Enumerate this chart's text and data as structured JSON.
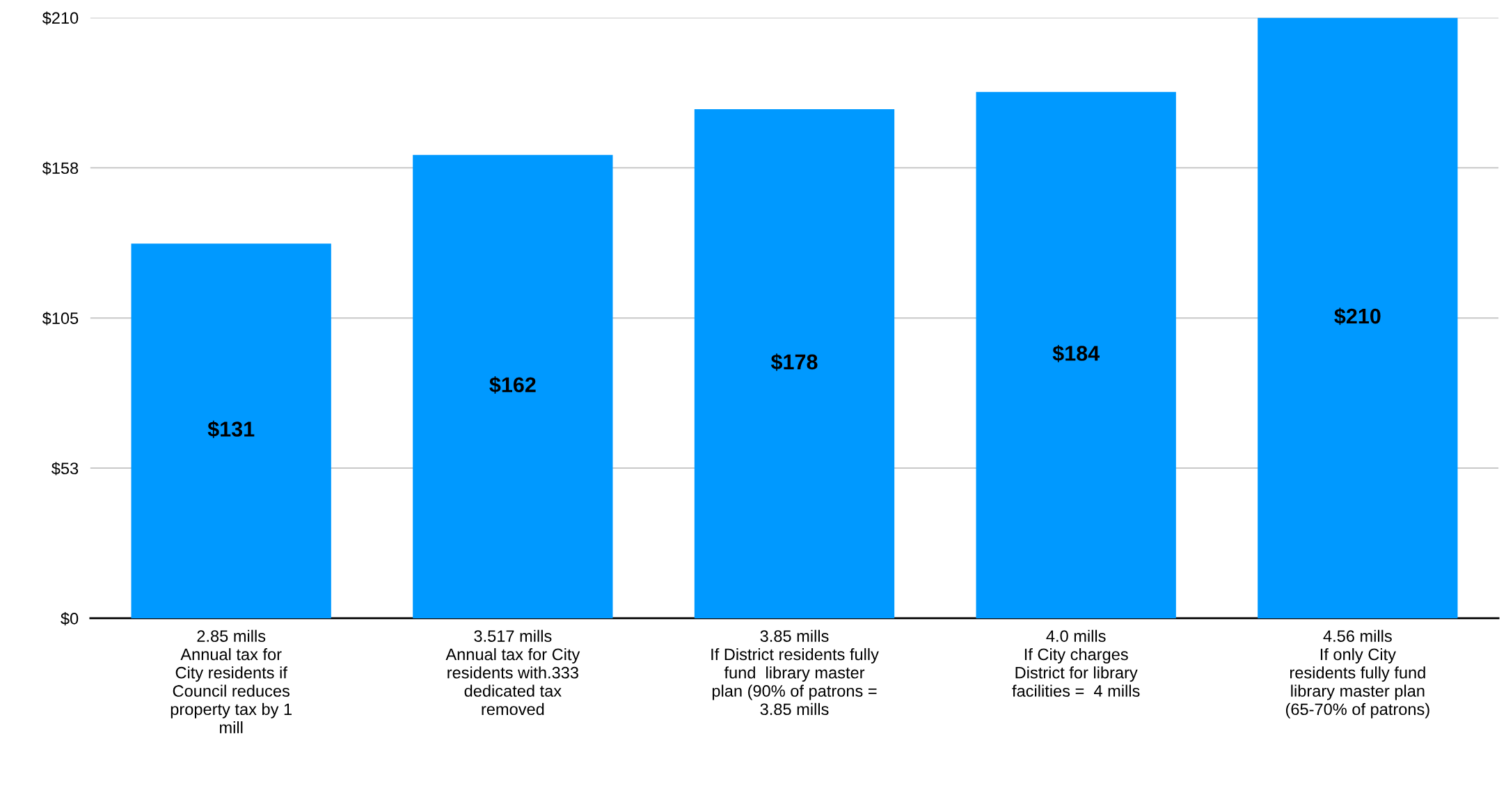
{
  "chart_data": {
    "type": "bar",
    "categories": [
      "2.85 mills\nAnnual tax for\nCity residents if\nCouncil reduces\nproperty tax by 1\nmill",
      "3.517 mills\nAnnual tax for City\nresidents with.333\ndedicated tax\nremoved",
      "3.85 mills\nIf District residents fully\nfund  library master\nplan (90% of patrons =\n3.85 mills",
      "4.0 mills\nIf City charges\nDistrict for library\nfacilities =  4 mills",
      "4.56 mills\nIf only City\nresidents fully fund\nlibrary master plan\n(65-70% of patrons)"
    ],
    "values": [
      131,
      162,
      178,
      184,
      210
    ],
    "value_labels": [
      "$131",
      "$162",
      "$178",
      "$184",
      "$210"
    ],
    "color": "#0099ff",
    "ylim": [
      0,
      210
    ],
    "yticks": [
      {
        "value": 0,
        "label": "$0"
      },
      {
        "value": 52.5,
        "label": "$53"
      },
      {
        "value": 105,
        "label": "$105"
      },
      {
        "value": 157.5,
        "label": "$158"
      },
      {
        "value": 210,
        "label": "$210"
      }
    ],
    "grid": "y",
    "legend": false
  }
}
